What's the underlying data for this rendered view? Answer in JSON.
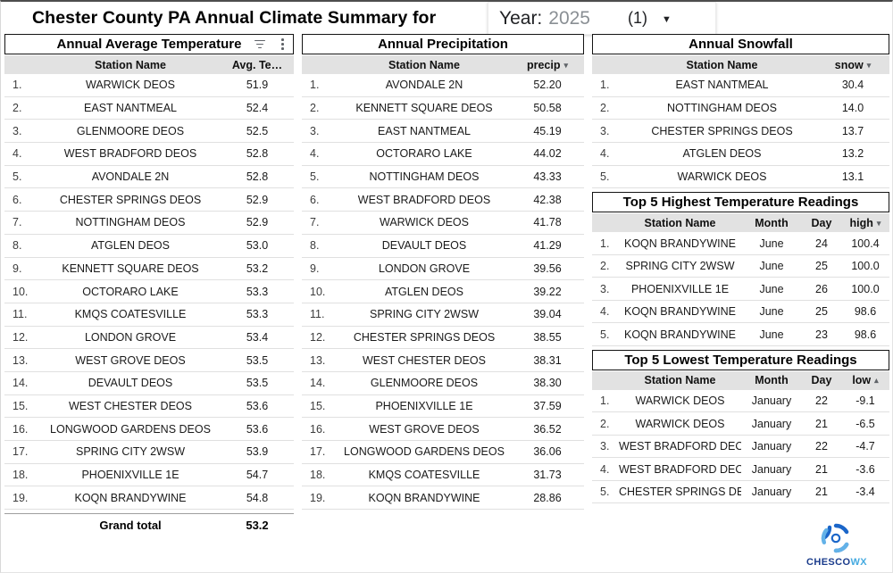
{
  "header": {
    "title": "Chester County PA Annual Climate Summary for",
    "year_selector": {
      "label": "Year:",
      "value": "2025",
      "count": "(1)",
      "caret_icon": "dropdown-caret-icon"
    }
  },
  "icons": {
    "filter": "filter-list-icon",
    "menu": "kebab-menu-icon",
    "sort_desc": "▾",
    "sort_asc": "▴"
  },
  "colors": {
    "header_row_bg": "#e2e2e2",
    "table_border": "#141414",
    "logo_navy": "#1b3c8c",
    "logo_blue": "#45aae0"
  },
  "tables": {
    "temperature": {
      "title": "Annual Average Temperature",
      "columns": [
        {
          "field": "rank",
          "label": ""
        },
        {
          "field": "station",
          "label": "Station Name"
        },
        {
          "field": "value",
          "label": "Avg. Te…"
        }
      ],
      "rows": [
        {
          "rank": "1.",
          "station": "WARWICK DEOS",
          "value": "51.9"
        },
        {
          "rank": "2.",
          "station": "EAST NANTMEAL",
          "value": "52.4"
        },
        {
          "rank": "3.",
          "station": "GLENMOORE DEOS",
          "value": "52.5"
        },
        {
          "rank": "4.",
          "station": "WEST BRADFORD DEOS",
          "value": "52.8"
        },
        {
          "rank": "5.",
          "station": "AVONDALE 2N",
          "value": "52.8"
        },
        {
          "rank": "6.",
          "station": "CHESTER SPRINGS DEOS",
          "value": "52.9"
        },
        {
          "rank": "7.",
          "station": "NOTTINGHAM DEOS",
          "value": "52.9"
        },
        {
          "rank": "8.",
          "station": "ATGLEN DEOS",
          "value": "53.0"
        },
        {
          "rank": "9.",
          "station": "KENNETT SQUARE DEOS",
          "value": "53.2"
        },
        {
          "rank": "10.",
          "station": "OCTORARO LAKE",
          "value": "53.3"
        },
        {
          "rank": "11.",
          "station": "KMQS COATESVILLE",
          "value": "53.3"
        },
        {
          "rank": "12.",
          "station": "LONDON GROVE",
          "value": "53.4"
        },
        {
          "rank": "13.",
          "station": "WEST GROVE DEOS",
          "value": "53.5"
        },
        {
          "rank": "14.",
          "station": "DEVAULT DEOS",
          "value": "53.5"
        },
        {
          "rank": "15.",
          "station": "WEST CHESTER DEOS",
          "value": "53.6"
        },
        {
          "rank": "16.",
          "station": "LONGWOOD GARDENS DEOS",
          "value": "53.6"
        },
        {
          "rank": "17.",
          "station": "SPRING CITY 2WSW",
          "value": "53.9"
        },
        {
          "rank": "18.",
          "station": "PHOENIXVILLE 1E",
          "value": "54.7"
        },
        {
          "rank": "19.",
          "station": "KOQN BRANDYWINE",
          "value": "54.8"
        }
      ],
      "grand_total_label": "Grand total",
      "grand_total_value": "53.2"
    },
    "precipitation": {
      "title": "Annual Precipitation",
      "columns": [
        {
          "field": "rank",
          "label": ""
        },
        {
          "field": "station",
          "label": "Station Name"
        },
        {
          "field": "value",
          "label": "precip",
          "sort": "desc"
        }
      ],
      "rows": [
        {
          "rank": "1.",
          "station": "AVONDALE 2N",
          "value": "52.20"
        },
        {
          "rank": "2.",
          "station": "KENNETT SQUARE DEOS",
          "value": "50.58"
        },
        {
          "rank": "3.",
          "station": "EAST NANTMEAL",
          "value": "45.19"
        },
        {
          "rank": "4.",
          "station": "OCTORARO LAKE",
          "value": "44.02"
        },
        {
          "rank": "5.",
          "station": "NOTTINGHAM DEOS",
          "value": "43.33"
        },
        {
          "rank": "6.",
          "station": "WEST BRADFORD DEOS",
          "value": "42.38"
        },
        {
          "rank": "7.",
          "station": "WARWICK DEOS",
          "value": "41.78"
        },
        {
          "rank": "8.",
          "station": "DEVAULT DEOS",
          "value": "41.29"
        },
        {
          "rank": "9.",
          "station": "LONDON GROVE",
          "value": "39.56"
        },
        {
          "rank": "10.",
          "station": "ATGLEN DEOS",
          "value": "39.22"
        },
        {
          "rank": "11.",
          "station": "SPRING CITY 2WSW",
          "value": "39.04"
        },
        {
          "rank": "12.",
          "station": "CHESTER SPRINGS DEOS",
          "value": "38.55"
        },
        {
          "rank": "13.",
          "station": "WEST CHESTER DEOS",
          "value": "38.31"
        },
        {
          "rank": "14.",
          "station": "GLENMOORE DEOS",
          "value": "38.30"
        },
        {
          "rank": "15.",
          "station": "PHOENIXVILLE 1E",
          "value": "37.59"
        },
        {
          "rank": "16.",
          "station": "WEST GROVE DEOS",
          "value": "36.52"
        },
        {
          "rank": "17.",
          "station": "LONGWOOD GARDENS DEOS",
          "value": "36.06"
        },
        {
          "rank": "18.",
          "station": "KMQS COATESVILLE",
          "value": "31.73"
        },
        {
          "rank": "19.",
          "station": "KOQN BRANDYWINE",
          "value": "28.86"
        }
      ]
    },
    "snowfall": {
      "title": "Annual Snowfall",
      "columns": [
        {
          "field": "rank",
          "label": ""
        },
        {
          "field": "station",
          "label": "Station Name"
        },
        {
          "field": "value",
          "label": "snow",
          "sort": "desc"
        }
      ],
      "rows": [
        {
          "rank": "1.",
          "station": "EAST NANTMEAL",
          "value": "30.4"
        },
        {
          "rank": "2.",
          "station": "NOTTINGHAM DEOS",
          "value": "14.0"
        },
        {
          "rank": "3.",
          "station": "CHESTER SPRINGS DEOS",
          "value": "13.7"
        },
        {
          "rank": "4.",
          "station": "ATGLEN DEOS",
          "value": "13.2"
        },
        {
          "rank": "5.",
          "station": "WARWICK DEOS",
          "value": "13.1"
        }
      ]
    },
    "highest": {
      "title": "Top 5 Highest Temperature Readings",
      "columns": [
        {
          "field": "rank",
          "label": ""
        },
        {
          "field": "station",
          "label": "Station Name"
        },
        {
          "field": "month",
          "label": "Month"
        },
        {
          "field": "day",
          "label": "Day"
        },
        {
          "field": "value",
          "label": "high",
          "sort": "desc"
        }
      ],
      "rows": [
        {
          "rank": "1.",
          "station": "KOQN BRANDYWINE",
          "month": "June",
          "day": "24",
          "value": "100.4"
        },
        {
          "rank": "2.",
          "station": "SPRING CITY 2WSW",
          "month": "June",
          "day": "25",
          "value": "100.0"
        },
        {
          "rank": "3.",
          "station": "PHOENIXVILLE 1E",
          "month": "June",
          "day": "26",
          "value": "100.0"
        },
        {
          "rank": "4.",
          "station": "KOQN BRANDYWINE",
          "month": "June",
          "day": "25",
          "value": "98.6"
        },
        {
          "rank": "5.",
          "station": "KOQN BRANDYWINE",
          "month": "June",
          "day": "23",
          "value": "98.6"
        }
      ]
    },
    "lowest": {
      "title": "Top 5 Lowest Temperature Readings",
      "columns": [
        {
          "field": "rank",
          "label": ""
        },
        {
          "field": "station",
          "label": "Station Name"
        },
        {
          "field": "month",
          "label": "Month"
        },
        {
          "field": "day",
          "label": "Day"
        },
        {
          "field": "value",
          "label": "low",
          "sort": "asc"
        }
      ],
      "rows": [
        {
          "rank": "1.",
          "station": "WARWICK DEOS",
          "month": "January",
          "day": "22",
          "value": "-9.1"
        },
        {
          "rank": "2.",
          "station": "WARWICK DEOS",
          "month": "January",
          "day": "21",
          "value": "-6.5"
        },
        {
          "rank": "3.",
          "station": "WEST BRADFORD DEOS",
          "month": "January",
          "day": "22",
          "value": "-4.7"
        },
        {
          "rank": "4.",
          "station": "WEST BRADFORD DEOS",
          "month": "January",
          "day": "21",
          "value": "-3.6"
        },
        {
          "rank": "5.",
          "station": "CHESTER SPRINGS DEOS",
          "month": "January",
          "day": "21",
          "value": "-3.4"
        }
      ]
    }
  },
  "footer": {
    "logo_primary": "CHESCO",
    "logo_secondary": "WX"
  }
}
